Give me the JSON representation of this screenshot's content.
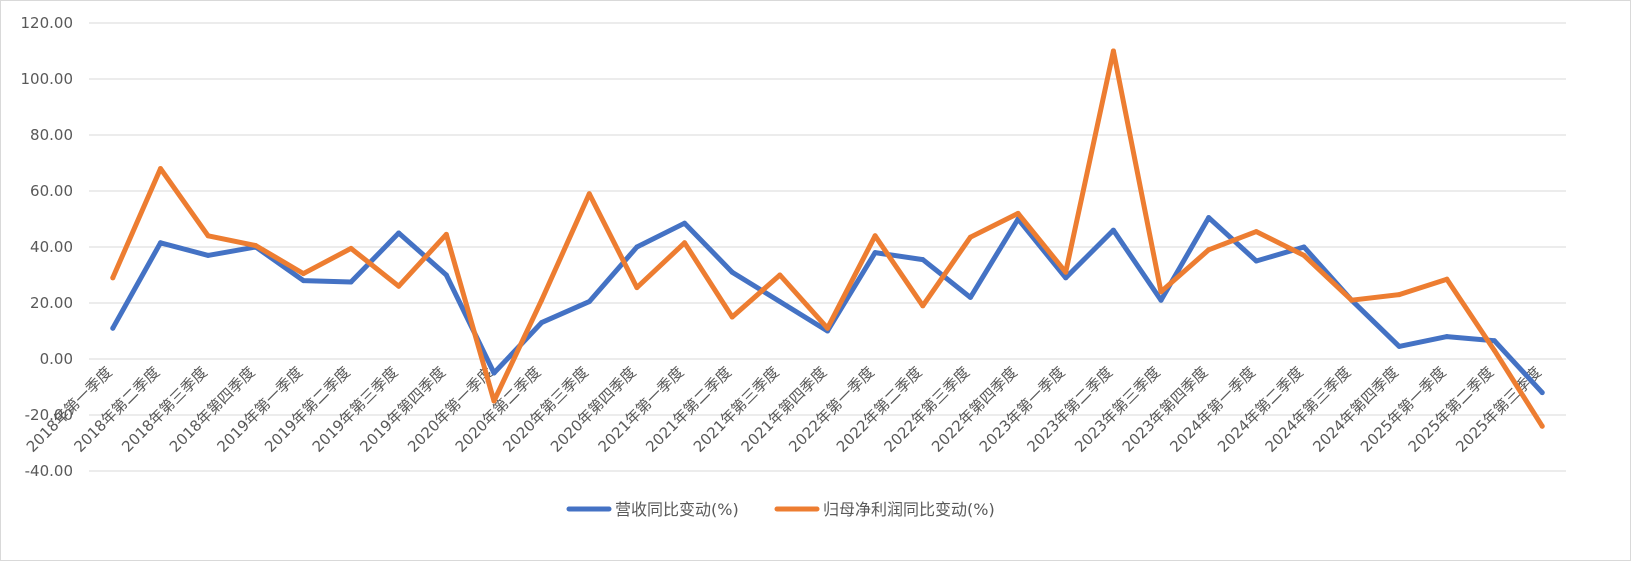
{
  "chart_data": {
    "type": "line",
    "title": "",
    "xlabel": "",
    "ylabel": "",
    "ylim": [
      -40,
      120
    ],
    "y_ticks": [
      "120.00",
      "100.00",
      "80.00",
      "60.00",
      "40.00",
      "20.00",
      "0.00",
      "-20.00",
      "-40.00"
    ],
    "grid": true,
    "legend_position": "bottom",
    "categories": [
      "2018年第一季度",
      "2018年第二季度",
      "2018年第三季度",
      "2018年第四季度",
      "2019年第一季度",
      "2019年第二季度",
      "2019年第三季度",
      "2019年第四季度",
      "2020年第一季度",
      "2020年第二季度",
      "2020年第三季度",
      "2020年第四季度",
      "2021年第一季度",
      "2021年第二季度",
      "2021年第三季度",
      "2021年第四季度",
      "2022年第一季度",
      "2022年第二季度",
      "2022年第三季度",
      "2022年第四季度",
      "2023年第一季度",
      "2023年第二季度",
      "2023年第三季度",
      "2023年第四季度",
      "2024年第一季度",
      "2024年第二季度",
      "2024年第三季度",
      "2024年第四季度",
      "2025年第一季度",
      "2025年第二季度",
      "2025年第三季度"
    ],
    "series": [
      {
        "name": "营收同比变动(%)",
        "color": "#4472C4",
        "values": [
          11,
          41.5,
          37,
          40,
          28,
          27.5,
          45,
          30,
          -5,
          13,
          20.5,
          40,
          48.5,
          31,
          20.5,
          10,
          38,
          35.5,
          22,
          50,
          29,
          46,
          21,
          50.5,
          35,
          40,
          21,
          4.5,
          8,
          6.5,
          -12
        ]
      },
      {
        "name": "归母净利润同比变动(%)",
        "color": "#ED7D31",
        "values": [
          29,
          68,
          44,
          40.5,
          30.5,
          39.5,
          26,
          44.5,
          -15,
          21,
          59,
          25.5,
          41.5,
          15,
          30,
          11,
          44,
          19,
          43.5,
          52,
          31,
          110,
          24,
          39,
          45.5,
          37,
          21,
          23,
          28.5,
          3,
          -24
        ]
      }
    ]
  }
}
